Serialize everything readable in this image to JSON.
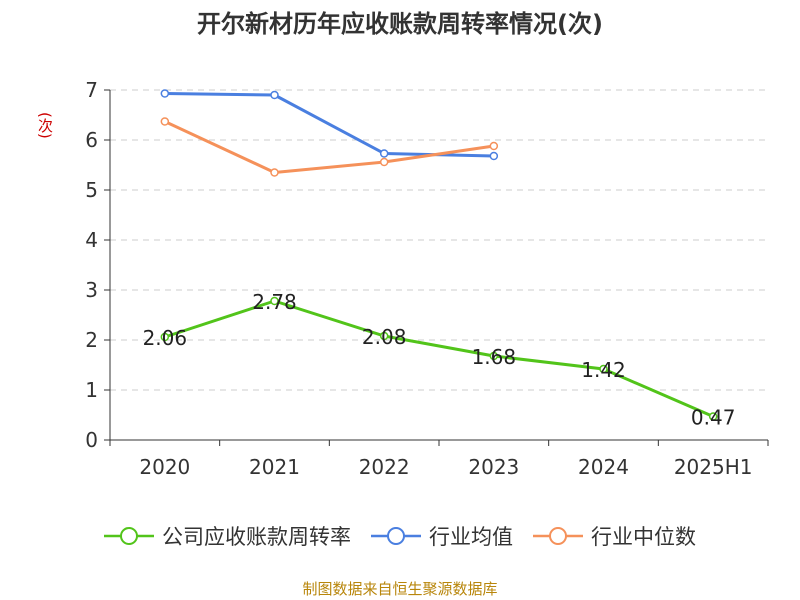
{
  "chart_data": {
    "type": "line",
    "title": "开尔新材历年应收账款周转率情况(次)",
    "ylabel": "(次)",
    "xlabel": "",
    "categories": [
      "2020",
      "2021",
      "2022",
      "2023",
      "2024",
      "2025H1"
    ],
    "ylim": [
      0,
      7
    ],
    "yticks": [
      "0",
      "1",
      "2",
      "3",
      "4",
      "5",
      "6",
      "7"
    ],
    "grid": true,
    "legend_position": "bottom",
    "series": [
      {
        "name": "公司应收账款周转率",
        "color": "#52c41a",
        "values": [
          2.06,
          2.78,
          2.08,
          1.68,
          1.42,
          0.47
        ],
        "labels": [
          "2.06",
          "2.78",
          "2.08",
          "1.68",
          "1.42",
          "0.47"
        ]
      },
      {
        "name": "行业均值",
        "color": "#4a7fe0",
        "values": [
          6.93,
          6.9,
          5.73,
          5.68,
          null,
          null
        ]
      },
      {
        "name": "行业中位数",
        "color": "#f5915a",
        "values": [
          6.37,
          5.35,
          5.56,
          5.88,
          null,
          null
        ]
      }
    ]
  },
  "source_text": "制图数据来自恒生聚源数据库"
}
